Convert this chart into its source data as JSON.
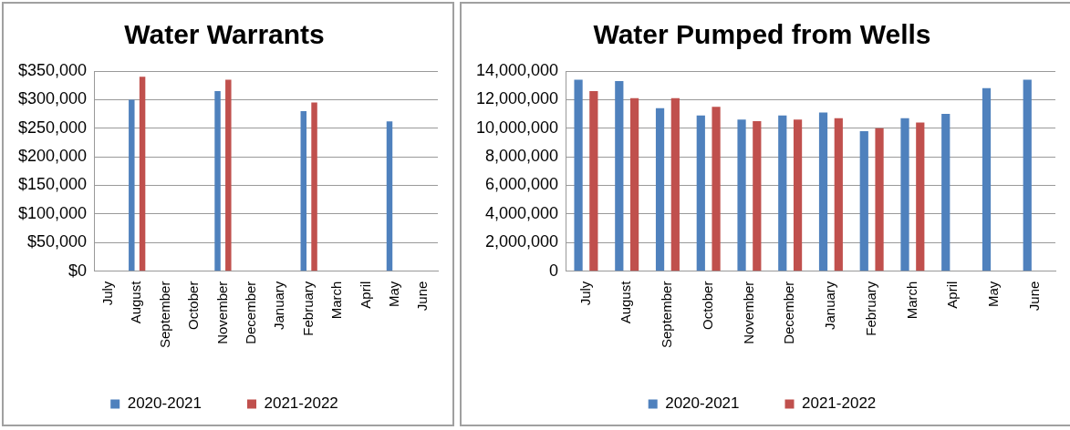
{
  "chart_data": [
    {
      "type": "bar",
      "title": "Water Warrants",
      "categories": [
        "July",
        "August",
        "September",
        "October",
        "November",
        "December",
        "January",
        "February",
        "March",
        "April",
        "May",
        "June"
      ],
      "series": [
        {
          "name": "2020-2021",
          "color": "#4f81bd",
          "values": [
            0,
            300000,
            0,
            0,
            315000,
            0,
            0,
            280000,
            0,
            0,
            262000,
            0
          ]
        },
        {
          "name": "2021-2022",
          "color": "#c0504d",
          "values": [
            0,
            340000,
            null,
            null,
            335000,
            null,
            null,
            295000,
            null,
            null,
            null,
            null
          ]
        }
      ],
      "ylim": [
        0,
        350000
      ],
      "yticks": [
        {
          "value": 0,
          "label": "$0"
        },
        {
          "value": 50000,
          "label": "$50,000"
        },
        {
          "value": 100000,
          "label": "$100,000"
        },
        {
          "value": 150000,
          "label": "$150,000"
        },
        {
          "value": 200000,
          "label": "$200,000"
        },
        {
          "value": 250000,
          "label": "$250,000"
        },
        {
          "value": 300000,
          "label": "$300,000"
        },
        {
          "value": 350000,
          "label": "$350,000"
        }
      ],
      "grid": "y",
      "legend": "bottom"
    },
    {
      "type": "bar",
      "title": "Water Pumped from Wells",
      "categories": [
        "July",
        "August",
        "September",
        "October",
        "November",
        "December",
        "January",
        "February",
        "March",
        "April",
        "May",
        "June"
      ],
      "series": [
        {
          "name": "2020-2021",
          "color": "#4f81bd",
          "values": [
            13400000,
            13300000,
            11400000,
            10900000,
            10600000,
            10900000,
            11100000,
            9800000,
            10700000,
            11000000,
            12800000,
            13400000
          ]
        },
        {
          "name": "2021-2022",
          "color": "#c0504d",
          "values": [
            12600000,
            12100000,
            12100000,
            11500000,
            10500000,
            10600000,
            10700000,
            10000000,
            10400000,
            null,
            null,
            null
          ]
        }
      ],
      "ylim": [
        0,
        14000000
      ],
      "yticks": [
        0,
        {
          "value": 2000000,
          "label": "2,000,000"
        },
        {
          "value": 4000000,
          "label": "4,000,000"
        },
        {
          "value": 6000000,
          "label": "6,000,000"
        },
        {
          "value": 8000000,
          "label": "8,000,000"
        },
        {
          "value": 10000000,
          "label": "10,000,000"
        },
        {
          "value": 12000000,
          "label": "12,000,000"
        },
        {
          "value": 14000000,
          "label": "14,000,000"
        }
      ],
      "grid": "y",
      "legend": "bottom"
    }
  ]
}
